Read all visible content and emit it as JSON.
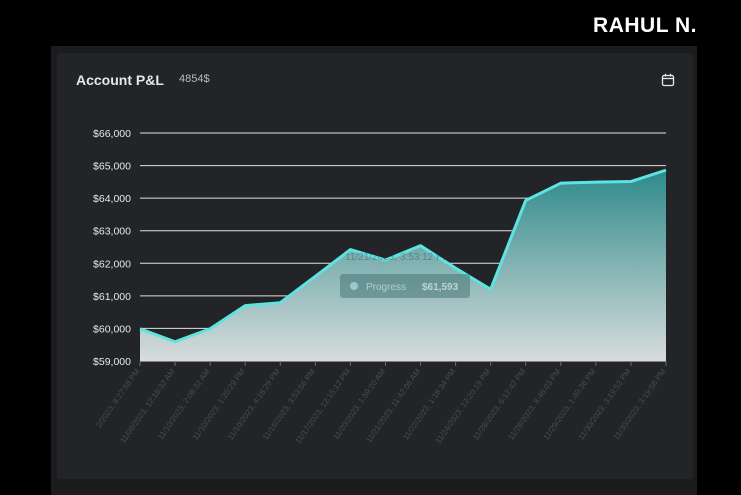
{
  "brand": "RAHUL N.",
  "card": {
    "title": "Account P&L",
    "value": "4854$",
    "calendar_icon": "calendar-icon"
  },
  "colors": {
    "line": "#5ee3e3",
    "area_top": "#2e8a8a",
    "area_bottom": "#d8dcdc",
    "grid": "#e0e0e0",
    "tick_text": "#e6e7e9",
    "card_bg": "#232427"
  },
  "tooltip": {
    "date": "11/21/2023, 3:53:12 PM",
    "series_label": "Progress",
    "value": "$61,593"
  },
  "chart_data": {
    "type": "area",
    "title": "",
    "xlabel": "",
    "ylabel": "",
    "ylim": [
      59000,
      66000
    ],
    "grid": true,
    "y_ticks": [
      "$59,000",
      "$60,000",
      "$61,000",
      "$62,000",
      "$63,000",
      "$64,000",
      "$65,000",
      "$66,000"
    ],
    "y_tick_values": [
      59000,
      60000,
      61000,
      62000,
      63000,
      64000,
      65000,
      66000
    ],
    "x": [
      "2/2023, 8:27:58 PM",
      "11/09/2023, 12:18:32 AM",
      "11/10/2023, 2:08:32 AM",
      "11/10/2023, 1:20:29 PM",
      "11/10/2023, 4:18:29 PM",
      "11/16/2023, 3:53:56 PM",
      "11/17/2023, 12:15:12 PM",
      "11/20/2023, 1:59:20 AM",
      "11/21/2023, 11:42:06 AM",
      "11/22/2023, 1:18:34 PM",
      "11/24/2023, 12:20:19 PM",
      "11/28/2023, 6:12:42 PM",
      "11/28/2023, 8:48:03 PM",
      "11/29/2023, 1:40:36 PM",
      "11/30/2023, 3:19:52 PM",
      "11/30/2023, 3:19:56 PM"
    ],
    "series": [
      {
        "values": [
          59990,
          59590,
          59990,
          60700,
          60790,
          61600,
          62420,
          62100,
          62540,
          61850,
          61200,
          63930,
          64460,
          64490,
          64510,
          64860
        ]
      }
    ]
  }
}
